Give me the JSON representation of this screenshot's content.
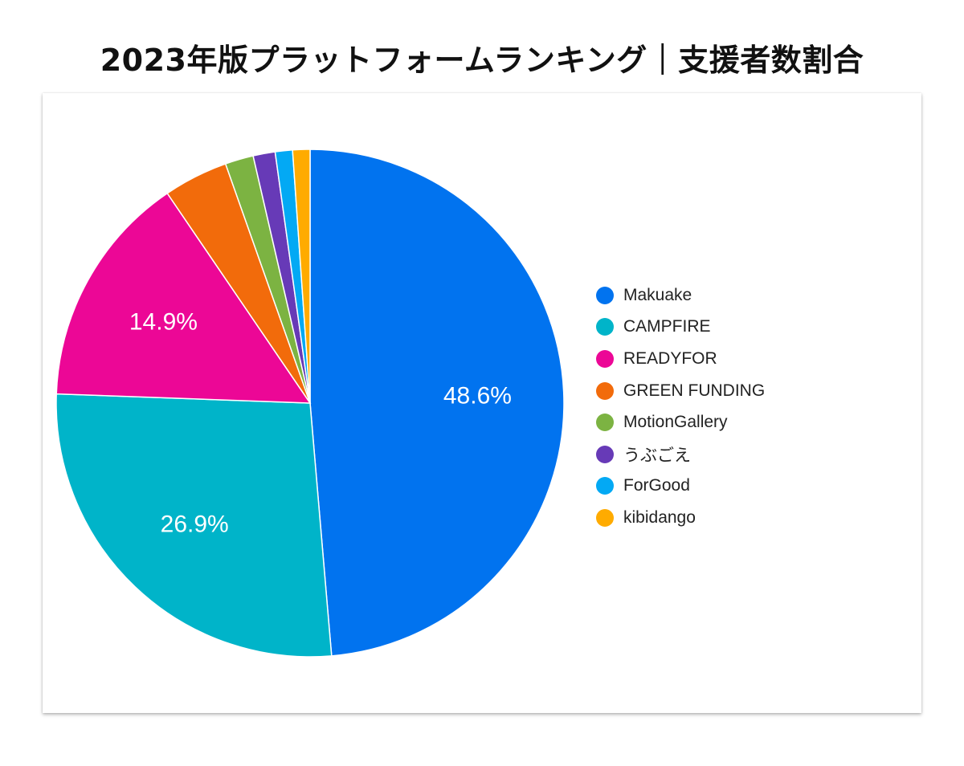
{
  "page": {
    "title": "2023年版プラットフォームランキング｜支援者数割合"
  },
  "chart_data": {
    "type": "pie",
    "title": "2023年版プラットフォームランキング｜支援者数割合",
    "unit": "%",
    "legend_position": "right",
    "start_angle": "top",
    "direction": "clockwise",
    "slices": [
      {
        "name": "Makuake",
        "value": 48.6,
        "label": "48.6%",
        "color": "#0173EF"
      },
      {
        "name": "CAMPFIRE",
        "value": 26.9,
        "label": "26.9%",
        "color": "#00B4C9"
      },
      {
        "name": "READYFOR",
        "value": 14.9,
        "label": "14.9%",
        "color": "#EC0796"
      },
      {
        "name": "GREEN FUNDING",
        "value": 4.1,
        "label": "",
        "color": "#F26B0B"
      },
      {
        "name": "MotionGallery",
        "value": 1.8,
        "label": "",
        "color": "#7CB342"
      },
      {
        "name": "うぶごえ",
        "value": 1.4,
        "label": "",
        "color": "#673AB7"
      },
      {
        "name": "ForGood",
        "value": 1.1,
        "label": "",
        "color": "#03A9F4"
      },
      {
        "name": "kibidango",
        "value": 1.1,
        "label": "",
        "color": "#FFAB00"
      }
    ]
  }
}
